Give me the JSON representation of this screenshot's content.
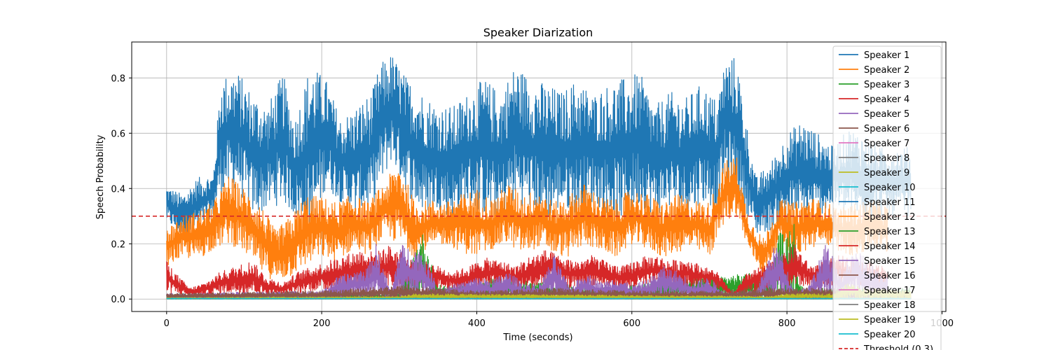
{
  "chart_data": {
    "type": "line",
    "title": "Speaker Diarization",
    "xlabel": "Time (seconds)",
    "ylabel": "Speech Probability",
    "xlim": [
      -45,
      1005
    ],
    "ylim": [
      -0.045,
      0.93
    ],
    "xticks": [
      0,
      200,
      400,
      600,
      800,
      1000
    ],
    "yticks": [
      0.0,
      0.2,
      0.4,
      0.6,
      0.8
    ],
    "xtick_labels": [
      "0",
      "200",
      "400",
      "600",
      "800",
      "1000"
    ],
    "ytick_labels": [
      "0.0",
      "0.2",
      "0.4",
      "0.6",
      "0.8"
    ],
    "grid": true,
    "legend_position": "upper right",
    "threshold": {
      "value": 0.3,
      "label": "Threshold (0.3)",
      "color": "#d62728",
      "style": "dashed"
    },
    "series": [
      {
        "name": "Speaker 1",
        "color": "#1f77b4",
        "x": [
          0,
          20,
          40,
          60,
          70,
          90,
          110,
          130,
          150,
          165,
          185,
          205,
          225,
          245,
          265,
          275,
          290,
          310,
          330,
          350,
          370,
          390,
          410,
          430,
          450,
          470,
          490,
          510,
          530,
          550,
          570,
          590,
          610,
          630,
          650,
          670,
          690,
          710,
          720,
          735,
          750,
          760,
          780,
          800,
          820,
          840,
          860,
          880,
          900,
          920,
          960
        ],
        "low": [
          0.28,
          0.22,
          0.25,
          0.3,
          0.38,
          0.4,
          0.3,
          0.32,
          0.35,
          0.3,
          0.22,
          0.4,
          0.35,
          0.3,
          0.33,
          0.4,
          0.5,
          0.38,
          0.3,
          0.33,
          0.28,
          0.34,
          0.3,
          0.28,
          0.35,
          0.32,
          0.28,
          0.33,
          0.3,
          0.35,
          0.3,
          0.28,
          0.34,
          0.3,
          0.33,
          0.3,
          0.35,
          0.32,
          0.42,
          0.38,
          0.3,
          0.23,
          0.25,
          0.3,
          0.28,
          0.3,
          0.33,
          0.3,
          0.28,
          0.3,
          0.3
        ],
        "high": [
          0.41,
          0.38,
          0.44,
          0.45,
          0.8,
          0.83,
          0.75,
          0.7,
          0.82,
          0.65,
          0.85,
          0.8,
          0.65,
          0.7,
          0.75,
          0.85,
          0.89,
          0.8,
          0.75,
          0.7,
          0.7,
          0.75,
          0.8,
          0.75,
          0.85,
          0.8,
          0.78,
          0.75,
          0.8,
          0.74,
          0.78,
          0.8,
          0.82,
          0.7,
          0.75,
          0.73,
          0.78,
          0.72,
          0.87,
          0.88,
          0.6,
          0.44,
          0.5,
          0.6,
          0.65,
          0.6,
          0.55,
          0.62,
          0.6,
          0.55,
          0.55
        ]
      },
      {
        "name": "Speaker 2",
        "color": "#ff7f0e",
        "x": [
          0,
          20,
          40,
          60,
          80,
          100,
          120,
          140,
          160,
          180,
          200,
          220,
          240,
          260,
          280,
          300,
          320,
          340,
          360,
          380,
          400,
          420,
          440,
          460,
          480,
          500,
          520,
          540,
          560,
          580,
          600,
          620,
          640,
          660,
          680,
          700,
          720,
          735,
          750,
          770,
          790,
          810,
          830,
          850,
          870,
          890,
          910,
          930
        ],
        "low": [
          0.12,
          0.15,
          0.14,
          0.18,
          0.2,
          0.17,
          0.1,
          0.06,
          0.08,
          0.12,
          0.15,
          0.13,
          0.18,
          0.16,
          0.22,
          0.2,
          0.15,
          0.18,
          0.2,
          0.17,
          0.15,
          0.18,
          0.2,
          0.16,
          0.19,
          0.16,
          0.15,
          0.2,
          0.17,
          0.15,
          0.2,
          0.18,
          0.15,
          0.17,
          0.18,
          0.15,
          0.28,
          0.3,
          0.18,
          0.08,
          0.2,
          0.15,
          0.18,
          0.2,
          0.17,
          0.15,
          0.18,
          0.16
        ],
        "high": [
          0.26,
          0.3,
          0.32,
          0.35,
          0.45,
          0.4,
          0.35,
          0.25,
          0.3,
          0.38,
          0.37,
          0.35,
          0.38,
          0.35,
          0.42,
          0.5,
          0.35,
          0.36,
          0.35,
          0.38,
          0.4,
          0.36,
          0.42,
          0.38,
          0.4,
          0.35,
          0.38,
          0.42,
          0.37,
          0.36,
          0.4,
          0.38,
          0.35,
          0.38,
          0.36,
          0.35,
          0.5,
          0.52,
          0.3,
          0.22,
          0.36,
          0.35,
          0.37,
          0.35,
          0.33,
          0.35,
          0.36,
          0.34
        ]
      },
      {
        "name": "Speaker 3",
        "color": "#2ca02c",
        "x": [
          0,
          300,
          320,
          330,
          350,
          400,
          420,
          560,
          600,
          620,
          780,
          790,
          800,
          810,
          815,
          830,
          960
        ],
        "low": [
          0,
          0,
          0,
          0,
          0,
          0,
          0,
          0,
          0,
          0,
          0,
          0,
          0,
          0,
          0,
          0,
          0
        ],
        "high": [
          0.02,
          0.02,
          0.18,
          0.24,
          0.05,
          0.05,
          0.08,
          0.04,
          0.05,
          0.06,
          0.1,
          0.25,
          0.22,
          0.3,
          0.05,
          0.04,
          0.04
        ]
      },
      {
        "name": "Speaker 4",
        "color": "#d62728",
        "x": [
          0,
          10,
          30,
          50,
          70,
          90,
          110,
          130,
          150,
          170,
          190,
          210,
          230,
          250,
          270,
          290,
          310,
          330,
          350,
          370,
          390,
          410,
          430,
          450,
          470,
          490,
          510,
          530,
          550,
          570,
          590,
          610,
          630,
          650,
          670,
          690,
          710,
          730,
          750,
          770,
          790,
          810,
          830,
          850,
          870,
          890,
          910,
          930
        ],
        "low": [
          0.02,
          0.02,
          0.01,
          0.01,
          0.02,
          0.02,
          0.02,
          0.01,
          0.01,
          0.02,
          0.03,
          0.03,
          0.04,
          0.04,
          0.05,
          0.03,
          0.04,
          0.05,
          0.04,
          0.03,
          0.03,
          0.04,
          0.05,
          0.04,
          0.03,
          0.05,
          0.04,
          0.04,
          0.05,
          0.04,
          0.03,
          0.04,
          0.05,
          0.04,
          0.04,
          0.05,
          0.04,
          0.01,
          0.02,
          0.03,
          0.04,
          0.04,
          0.05,
          0.04,
          0.04,
          0.05,
          0.04,
          0.04
        ],
        "high": [
          0.14,
          0.1,
          0.04,
          0.06,
          0.1,
          0.12,
          0.14,
          0.08,
          0.06,
          0.1,
          0.12,
          0.14,
          0.16,
          0.18,
          0.17,
          0.2,
          0.15,
          0.14,
          0.12,
          0.1,
          0.12,
          0.15,
          0.14,
          0.12,
          0.16,
          0.18,
          0.15,
          0.14,
          0.16,
          0.13,
          0.12,
          0.15,
          0.16,
          0.14,
          0.15,
          0.12,
          0.1,
          0.02,
          0.1,
          0.12,
          0.15,
          0.2,
          0.12,
          0.14,
          0.16,
          0.14,
          0.13,
          0.12
        ]
      },
      {
        "name": "Speaker 5",
        "color": "#9467bd",
        "x": [
          0,
          200,
          220,
          240,
          260,
          270,
          290,
          300,
          330,
          350,
          380,
          400,
          420,
          440,
          460,
          480,
          500,
          520,
          540,
          560,
          580,
          600,
          620,
          640,
          660,
          680,
          700,
          720,
          760,
          780,
          790,
          810,
          830,
          850,
          870,
          890,
          910,
          930
        ],
        "low": [
          0,
          0,
          0,
          0,
          0,
          0,
          0,
          0,
          0,
          0,
          0,
          0,
          0,
          0,
          0,
          0,
          0,
          0,
          0,
          0,
          0,
          0,
          0,
          0,
          0,
          0,
          0,
          0,
          0,
          0,
          0,
          0,
          0,
          0,
          0,
          0,
          0,
          0
        ],
        "high": [
          0.02,
          0.03,
          0.08,
          0.1,
          0.12,
          0.2,
          0.02,
          0.2,
          0.18,
          0.04,
          0.06,
          0.08,
          0.07,
          0.1,
          0.06,
          0.05,
          0.16,
          0.04,
          0.1,
          0.06,
          0.08,
          0.05,
          0.07,
          0.12,
          0.1,
          0.06,
          0.08,
          0.02,
          0.03,
          0.18,
          0.2,
          0.02,
          0.06,
          0.2,
          0.1,
          0.18,
          0.12,
          0.08
        ]
      },
      {
        "name": "Speaker 6",
        "color": "#8c564b",
        "x": [
          0,
          200,
          300,
          400,
          500,
          600,
          700,
          800,
          900,
          960
        ],
        "low": [
          0,
          0,
          0,
          0,
          0,
          0,
          0,
          0,
          0,
          0
        ],
        "high": [
          0.02,
          0.03,
          0.05,
          0.03,
          0.04,
          0.03,
          0.03,
          0.04,
          0.04,
          0.03
        ]
      },
      {
        "name": "Speaker 7",
        "color": "#e377c2",
        "x": [
          0,
          960
        ],
        "low": [
          0,
          0
        ],
        "high": [
          0.005,
          0.005
        ]
      },
      {
        "name": "Speaker 8",
        "color": "#7f7f7f",
        "x": [
          0,
          960
        ],
        "low": [
          0,
          0
        ],
        "high": [
          0.006,
          0.006
        ]
      },
      {
        "name": "Speaker 9",
        "color": "#bcbd22",
        "x": [
          0,
          300,
          320,
          780,
          800,
          860,
          880,
          900,
          960
        ],
        "low": [
          0,
          0,
          0,
          0,
          0,
          0,
          0,
          0,
          0
        ],
        "high": [
          0.005,
          0.01,
          0.02,
          0.01,
          0.02,
          0.02,
          0.06,
          0.04,
          0.03
        ]
      },
      {
        "name": "Speaker 10",
        "color": "#17becf",
        "x": [
          0,
          960
        ],
        "low": [
          0,
          0
        ],
        "high": [
          0.003,
          0.003
        ]
      },
      {
        "name": "Speaker 11",
        "color": "#1f77b4",
        "x": [
          0,
          960
        ],
        "low": [
          0,
          0
        ],
        "high": [
          0.002,
          0.002
        ]
      },
      {
        "name": "Speaker 12",
        "color": "#ff7f0e",
        "x": [
          0,
          960
        ],
        "low": [
          0,
          0
        ],
        "high": [
          0.002,
          0.002
        ]
      },
      {
        "name": "Speaker 13",
        "color": "#2ca02c",
        "x": [
          0,
          960
        ],
        "low": [
          0,
          0
        ],
        "high": [
          0.002,
          0.002
        ]
      },
      {
        "name": "Speaker 14",
        "color": "#d62728",
        "x": [
          0,
          960
        ],
        "low": [
          0,
          0
        ],
        "high": [
          0.002,
          0.002
        ]
      },
      {
        "name": "Speaker 15",
        "color": "#9467bd",
        "x": [
          0,
          960
        ],
        "low": [
          0,
          0
        ],
        "high": [
          0.002,
          0.002
        ]
      },
      {
        "name": "Speaker 16",
        "color": "#8c564b",
        "x": [
          0,
          960
        ],
        "low": [
          0,
          0
        ],
        "high": [
          0.002,
          0.002
        ]
      },
      {
        "name": "Speaker 17",
        "color": "#e377c2",
        "x": [
          0,
          960
        ],
        "low": [
          0,
          0
        ],
        "high": [
          0.002,
          0.002
        ]
      },
      {
        "name": "Speaker 18",
        "color": "#7f7f7f",
        "x": [
          0,
          960
        ],
        "low": [
          0,
          0
        ],
        "high": [
          0.002,
          0.002
        ]
      },
      {
        "name": "Speaker 19",
        "color": "#bcbd22",
        "x": [
          0,
          960
        ],
        "low": [
          0,
          0
        ],
        "high": [
          0.002,
          0.002
        ]
      },
      {
        "name": "Speaker 20",
        "color": "#17becf",
        "x": [
          0,
          960
        ],
        "low": [
          0,
          0
        ],
        "high": [
          0.003,
          0.003
        ]
      }
    ]
  }
}
